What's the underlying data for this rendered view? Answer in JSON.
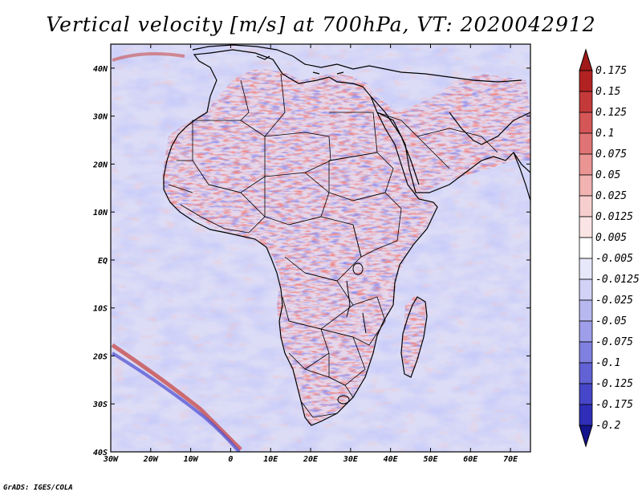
{
  "title": "Vertical velocity [m/s] at 700hPa, VT: 2020042912",
  "credit": "GrADS: IGES/COLA",
  "map": {
    "lon_range": [
      -30,
      75
    ],
    "lat_range": [
      -40,
      45
    ],
    "lon_ticks": [
      {
        "value": -30,
        "label": "30W"
      },
      {
        "value": -20,
        "label": "20W"
      },
      {
        "value": -10,
        "label": "10W"
      },
      {
        "value": 0,
        "label": "0"
      },
      {
        "value": 10,
        "label": "10E"
      },
      {
        "value": 20,
        "label": "20E"
      },
      {
        "value": 30,
        "label": "30E"
      },
      {
        "value": 40,
        "label": "40E"
      },
      {
        "value": 50,
        "label": "50E"
      },
      {
        "value": 60,
        "label": "60E"
      },
      {
        "value": 70,
        "label": "70E"
      }
    ],
    "lat_ticks": [
      {
        "value": 40,
        "label": "40N"
      },
      {
        "value": 30,
        "label": "30N"
      },
      {
        "value": 20,
        "label": "20N"
      },
      {
        "value": 10,
        "label": "10N"
      },
      {
        "value": 0,
        "label": "EQ"
      },
      {
        "value": -10,
        "label": "10S"
      },
      {
        "value": -20,
        "label": "20S"
      },
      {
        "value": -30,
        "label": "30S"
      },
      {
        "value": -40,
        "label": "40S"
      }
    ]
  },
  "colorbar": {
    "levels": [
      {
        "label": "0.175",
        "color": "#b22222"
      },
      {
        "label": "0.15",
        "color": "#c43a3a"
      },
      {
        "label": "0.125",
        "color": "#d45656"
      },
      {
        "label": "0.1",
        "color": "#e07474"
      },
      {
        "label": "0.075",
        "color": "#ea9494"
      },
      {
        "label": "0.05",
        "color": "#f1b2b2"
      },
      {
        "label": "0.025",
        "color": "#f7cece"
      },
      {
        "label": "0.0125",
        "color": "#fbe4e4"
      },
      {
        "label": "0.005",
        "color": "#ffffff"
      },
      {
        "label": "-0.005",
        "color": "#e8e8fb"
      },
      {
        "label": "-0.0125",
        "color": "#d2d2f6"
      },
      {
        "label": "-0.025",
        "color": "#b8b8f0"
      },
      {
        "label": "-0.05",
        "color": "#9e9eea"
      },
      {
        "label": "-0.075",
        "color": "#8080e0"
      },
      {
        "label": "-0.1",
        "color": "#6262d4"
      },
      {
        "label": "-0.125",
        "color": "#4646c8"
      },
      {
        "label": "-0.175",
        "color": "#2e2eb8"
      },
      {
        "label": "-0.2",
        "color": "#1a1aa0"
      }
    ],
    "top_color": "#a01a1a",
    "bottom_color": "#14148c"
  },
  "colors": {
    "upward": "#c43a3a",
    "downward": "#3a3ac4",
    "coastline": "#000000"
  }
}
